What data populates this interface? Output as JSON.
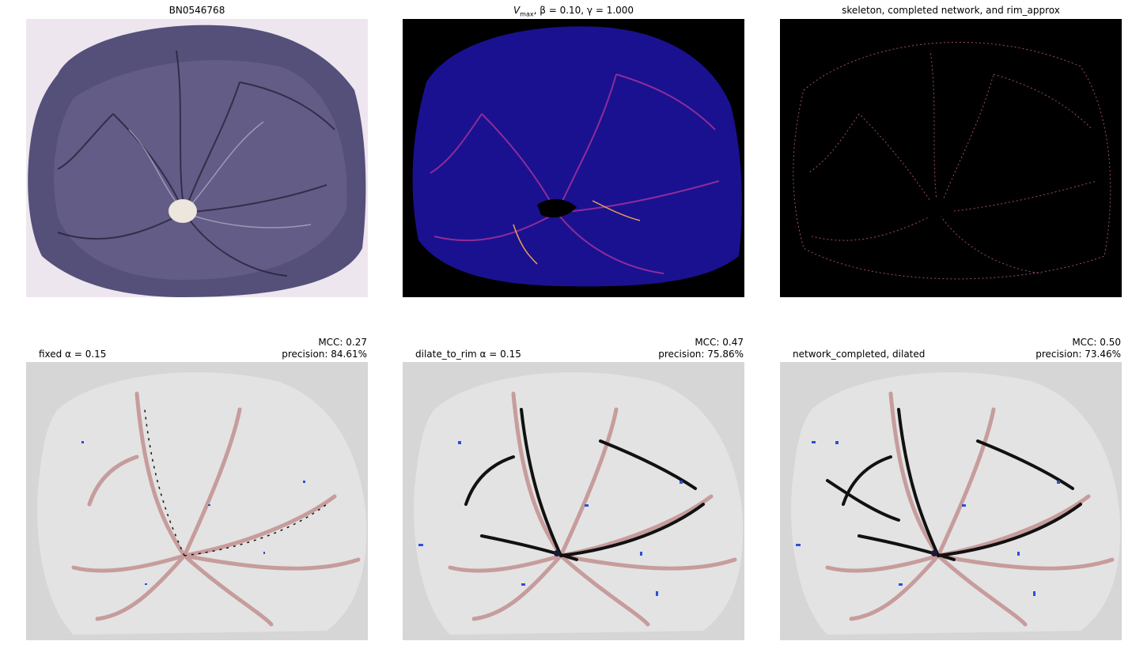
{
  "panels": [
    {
      "title": "BN0546768"
    },
    {
      "title_prefix": "V",
      "title_sub": "max",
      "title_rest": ", β = 0.10, γ = 1.000"
    },
    {
      "title": "skeleton, completed network, and rim_approx"
    },
    {
      "title": "fixed α = 0.15",
      "mcc": "MCC: 0.27",
      "precision": "precision: 84.61%"
    },
    {
      "title": "dilate_to_rim α = 0.15",
      "mcc": "MCC: 0.47",
      "precision": "precision: 75.86%"
    },
    {
      "title": "network_completed, dilated",
      "mcc": "MCC: 0.50",
      "precision": "precision: 73.46%"
    }
  ],
  "colors": {
    "placenta_bg": "#e9e0ea",
    "placenta_body": "#5a5478",
    "heatmap_bg": "#000000",
    "heatmap_body": "#1a1190",
    "seg_bg": "#d6d6d6",
    "seg_plate": "#e3e3e3",
    "vessel_truth": "#c79c9c",
    "vessel_pred": "#111111",
    "false_pos": "#2a50d8"
  }
}
